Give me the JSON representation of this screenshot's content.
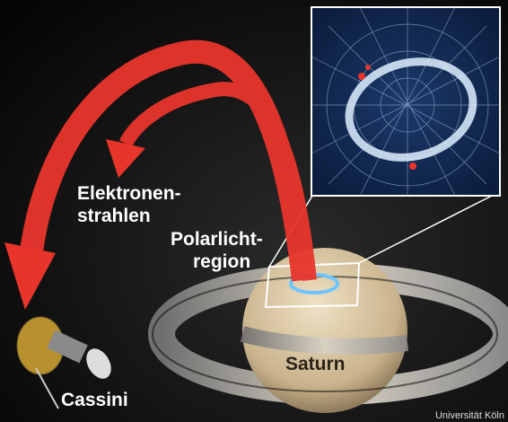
{
  "labels": {
    "beam": [
      "Elektronen-",
      "strahlen"
    ],
    "region": [
      "Polarlicht-",
      "region"
    ],
    "planet": "Saturn",
    "spacecraft": "Cassini",
    "credit": "Universität Köln"
  }
}
